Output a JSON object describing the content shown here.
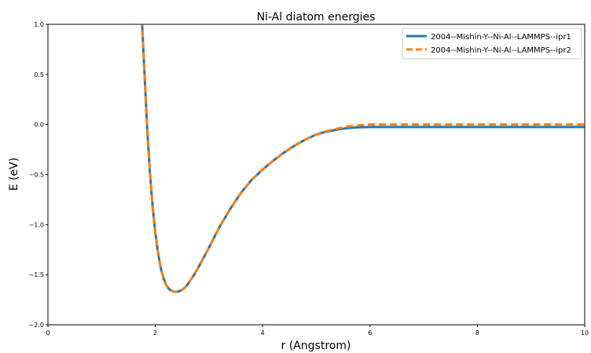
{
  "chart_data": {
    "type": "line",
    "title": "Ni-Al diatom energies",
    "xlabel": "r (Angstrom)",
    "ylabel": "E (eV)",
    "xlim": [
      0,
      10
    ],
    "ylim": [
      -2.0,
      1.0
    ],
    "xticks": [
      0,
      2,
      4,
      6,
      8,
      10
    ],
    "xtick_labels": [
      "0",
      "2",
      "4",
      "6",
      "8",
      "10"
    ],
    "yticks": [
      1.0,
      0.5,
      0.0,
      -0.5,
      -1.0,
      -1.5,
      -2.0
    ],
    "ytick_labels": [
      "1.0",
      "0.5",
      "0.0",
      "−0.5",
      "−1.0",
      "−1.5",
      "−2.0"
    ],
    "grid": false,
    "legend_position": "top-right",
    "series": [
      {
        "name": "2004--Mishin-Y--Ni-Al--LAMMPS--ipr1",
        "color": "#1f77b4",
        "style": "solid",
        "x": [
          1.75,
          1.8,
          1.85,
          1.9,
          1.95,
          2.0,
          2.05,
          2.1,
          2.15,
          2.2,
          2.25,
          2.3,
          2.35,
          2.4,
          2.45,
          2.5,
          2.55,
          2.6,
          2.7,
          2.8,
          2.9,
          3.0,
          3.2,
          3.4,
          3.6,
          3.8,
          4.0,
          4.2,
          4.4,
          4.6,
          4.8,
          5.0,
          5.2,
          5.4,
          5.6,
          5.8,
          6.0,
          6.5,
          7.0,
          8.0,
          9.0,
          10.0
        ],
        "y": [
          1.05,
          0.5,
          -0.05,
          -0.48,
          -0.82,
          -1.08,
          -1.28,
          -1.43,
          -1.53,
          -1.6,
          -1.64,
          -1.66,
          -1.67,
          -1.67,
          -1.665,
          -1.65,
          -1.63,
          -1.6,
          -1.52,
          -1.43,
          -1.33,
          -1.23,
          -1.02,
          -0.84,
          -0.68,
          -0.55,
          -0.45,
          -0.36,
          -0.28,
          -0.21,
          -0.15,
          -0.1,
          -0.07,
          -0.05,
          -0.035,
          -0.028,
          -0.025,
          -0.025,
          -0.025,
          -0.025,
          -0.025,
          -0.025
        ]
      },
      {
        "name": "2004--Mishin-Y--Ni-Al--LAMMPS--ipr2",
        "color": "#ff7f0e",
        "style": "dashed",
        "x": [
          1.75,
          1.8,
          1.85,
          1.9,
          1.95,
          2.0,
          2.05,
          2.1,
          2.15,
          2.2,
          2.25,
          2.3,
          2.35,
          2.4,
          2.45,
          2.5,
          2.55,
          2.6,
          2.7,
          2.8,
          2.9,
          3.0,
          3.2,
          3.4,
          3.6,
          3.8,
          4.0,
          4.2,
          4.4,
          4.6,
          4.8,
          5.0,
          5.2,
          5.4,
          5.6,
          5.8,
          6.0,
          6.5,
          7.0,
          8.0,
          9.0,
          10.0
        ],
        "y": [
          1.05,
          0.5,
          -0.05,
          -0.48,
          -0.82,
          -1.08,
          -1.28,
          -1.43,
          -1.53,
          -1.6,
          -1.64,
          -1.66,
          -1.67,
          -1.67,
          -1.665,
          -1.65,
          -1.63,
          -1.6,
          -1.52,
          -1.43,
          -1.33,
          -1.23,
          -1.02,
          -0.84,
          -0.68,
          -0.55,
          -0.45,
          -0.36,
          -0.28,
          -0.21,
          -0.15,
          -0.1,
          -0.065,
          -0.04,
          -0.02,
          -0.008,
          0.0,
          0.0,
          0.0,
          0.0,
          0.0,
          0.0
        ]
      }
    ]
  }
}
